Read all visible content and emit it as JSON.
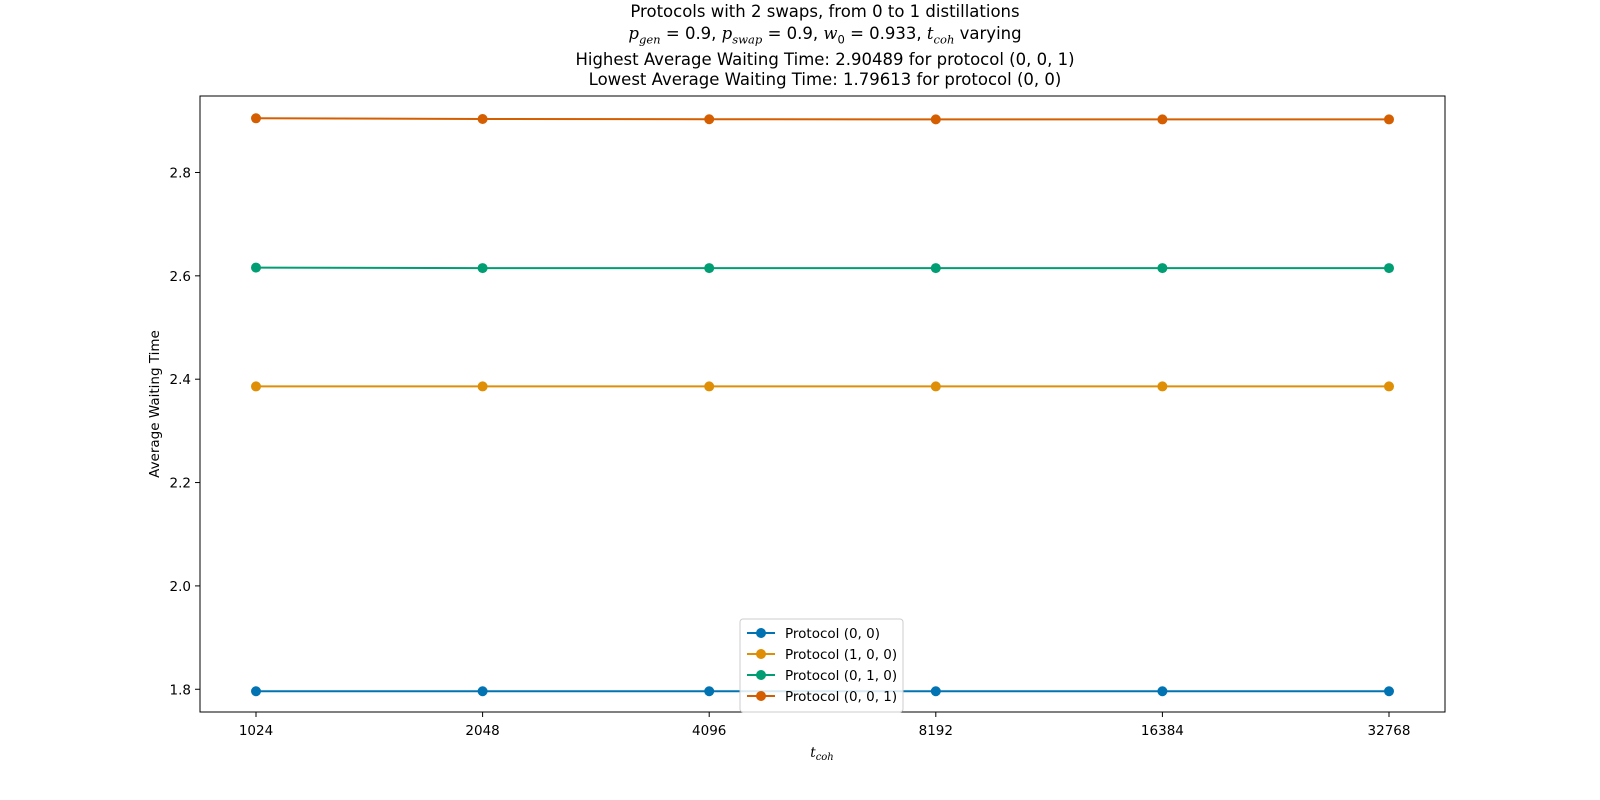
{
  "chart_data": {
    "type": "line",
    "title": {
      "line1": "Protocols with 2 swaps, from 0 to 1 distillations",
      "line2_parts": {
        "p_gen_sym": "p",
        "p_gen_sub": "gen",
        "p_gen_val": " = 0.9, ",
        "p_swap_sym": "p",
        "p_swap_sub": "swap",
        "p_swap_val": " = 0.9, ",
        "w0_sym": "w",
        "w0_sub": "0",
        "w0_val": " = 0.933, ",
        "tcoh_sym": "t",
        "tcoh_sub": "coh",
        "tcoh_tail": " varying"
      },
      "line3": "Highest Average Waiting Time: 2.90489 for protocol (0, 0, 1)",
      "line4": "Lowest Average Waiting Time: 1.79613 for protocol (0, 0)"
    },
    "xlabel": {
      "sym": "t",
      "sub": "coh"
    },
    "ylabel": "Average Waiting Time",
    "categories": [
      "1024",
      "2048",
      "4096",
      "8192",
      "16384",
      "32768"
    ],
    "y_ticks": [
      1.8,
      2.0,
      2.2,
      2.4,
      2.6,
      2.8
    ],
    "ylim": [
      1.756,
      2.948
    ],
    "legend_position": "lower center",
    "series": [
      {
        "name": "Protocol (0, 0)",
        "color": "#0173b2",
        "values": [
          1.79613,
          1.79613,
          1.79613,
          1.79613,
          1.79613,
          1.79613
        ]
      },
      {
        "name": "Protocol (1, 0, 0)",
        "color": "#de8f05",
        "values": [
          2.386,
          2.386,
          2.386,
          2.386,
          2.386,
          2.386
        ]
      },
      {
        "name": "Protocol (0, 1, 0)",
        "color": "#029e73",
        "values": [
          2.616,
          2.615,
          2.615,
          2.615,
          2.615,
          2.615
        ]
      },
      {
        "name": "Protocol (0, 0, 1)",
        "color": "#d55e00",
        "values": [
          2.90489,
          2.9035,
          2.903,
          2.9028,
          2.9027,
          2.9027
        ]
      }
    ]
  }
}
